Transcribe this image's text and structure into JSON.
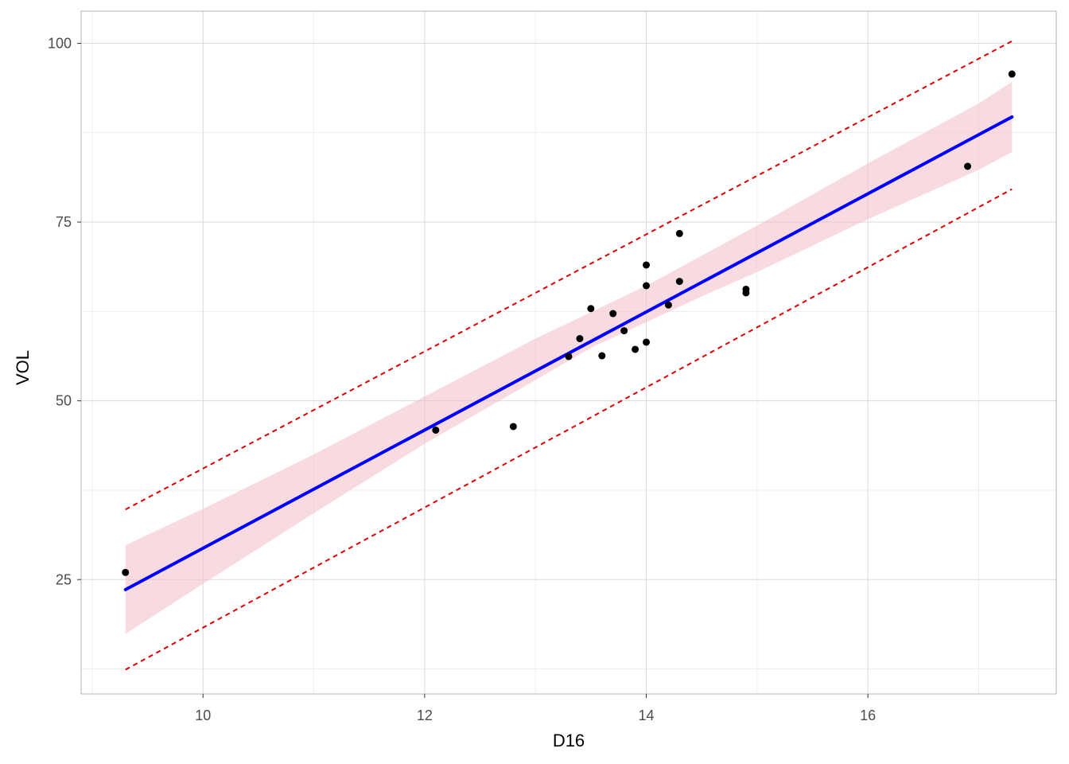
{
  "chart_data": {
    "type": "scatter",
    "title": "",
    "xlabel": "D16",
    "ylabel": "VOL",
    "xlim": [
      8.9,
      17.7
    ],
    "ylim": [
      9.0,
      104.5
    ],
    "x_ticks": [
      10,
      12,
      14,
      16
    ],
    "y_ticks": [
      25,
      50,
      75,
      100
    ],
    "x_tick_labels": [
      "10",
      "12",
      "14",
      "16"
    ],
    "y_tick_labels": [
      "25",
      "50",
      "75",
      "100"
    ],
    "grid": true,
    "legend": "none",
    "points": [
      {
        "x": 9.3,
        "y": 26.0
      },
      {
        "x": 12.1,
        "y": 45.9
      },
      {
        "x": 12.8,
        "y": 46.4
      },
      {
        "x": 13.3,
        "y": 56.2
      },
      {
        "x": 13.4,
        "y": 58.7
      },
      {
        "x": 13.5,
        "y": 62.9
      },
      {
        "x": 13.6,
        "y": 56.3
      },
      {
        "x": 13.7,
        "y": 62.2
      },
      {
        "x": 13.8,
        "y": 59.8
      },
      {
        "x": 13.9,
        "y": 57.2
      },
      {
        "x": 14.0,
        "y": 58.2
      },
      {
        "x": 14.0,
        "y": 66.1
      },
      {
        "x": 14.0,
        "y": 69.0
      },
      {
        "x": 14.2,
        "y": 63.4
      },
      {
        "x": 14.3,
        "y": 66.7
      },
      {
        "x": 14.3,
        "y": 73.4
      },
      {
        "x": 14.9,
        "y": 65.1
      },
      {
        "x": 14.9,
        "y": 65.6
      },
      {
        "x": 16.9,
        "y": 82.8
      },
      {
        "x": 17.3,
        "y": 95.7
      }
    ],
    "fit_line": {
      "x": [
        9.3,
        17.3
      ],
      "y": [
        23.6,
        89.7
      ]
    },
    "confidence_band": {
      "x": [
        9.3,
        10.0,
        11.0,
        12.0,
        13.0,
        13.5,
        14.0,
        14.5,
        15.0,
        16.0,
        17.0,
        17.3
      ],
      "lower": [
        17.4,
        24.4,
        34.3,
        44.0,
        52.9,
        57.4,
        61.0,
        64.6,
        68.0,
        75.4,
        82.3,
        84.8
      ],
      "upper": [
        29.8,
        34.9,
        42.5,
        50.6,
        58.7,
        62.4,
        66.1,
        70.3,
        74.5,
        83.2,
        91.6,
        94.6
      ]
    },
    "prediction_upper": {
      "x": [
        9.3,
        17.3
      ],
      "y": [
        34.8,
        100.3
      ]
    },
    "prediction_lower": {
      "x": [
        9.3,
        17.3
      ],
      "y": [
        12.4,
        79.6
      ]
    },
    "colors": {
      "point": "#000000",
      "fit_line": "#0000ff",
      "band": "#f4c2cd",
      "prediction": "#dd0000"
    }
  }
}
